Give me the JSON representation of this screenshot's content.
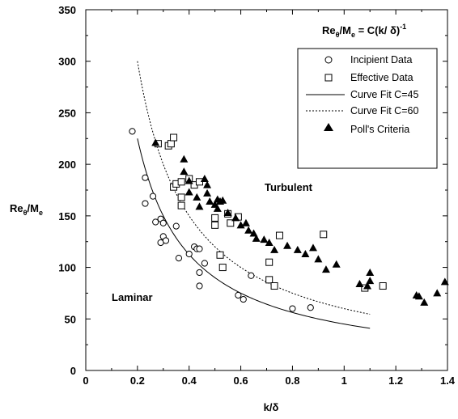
{
  "chart_data": {
    "type": "scatter",
    "xlabel": "k/δ",
    "ylabel": {
      "main": "Re",
      "sub1": "θ",
      "mid": "/M",
      "sub2": "e"
    },
    "xlim": [
      0,
      1.4
    ],
    "ylim": [
      0,
      350
    ],
    "x_ticks": [
      0,
      0.2,
      0.4,
      0.6,
      0.8,
      1,
      1.2,
      1.4
    ],
    "x_tick_labels": [
      "0",
      "0.2",
      "0.4",
      "0.6",
      "0.8",
      "1",
      "1.2",
      "1.4"
    ],
    "y_ticks": [
      0,
      50,
      100,
      150,
      200,
      250,
      300,
      350
    ],
    "y_tick_labels": [
      "0",
      "50",
      "100",
      "150",
      "200",
      "250",
      "300",
      "350"
    ],
    "grid": false,
    "formula": {
      "lhs_main": "Re",
      "lhs_sub1": "θ",
      "lhs_mid": "/M",
      "lhs_sub2": "e",
      "rhs": " = C(k/ δ)",
      "exponent": "-1"
    },
    "region_labels": [
      "Turbulent",
      "Laminar"
    ],
    "legend_position": "top-right",
    "series": [
      {
        "name": "Incipient Data",
        "marker": "circle-open",
        "points": [
          [
            0.18,
            232
          ],
          [
            0.23,
            187
          ],
          [
            0.23,
            162
          ],
          [
            0.26,
            169
          ],
          [
            0.27,
            144
          ],
          [
            0.29,
            147
          ],
          [
            0.29,
            124
          ],
          [
            0.3,
            130
          ],
          [
            0.3,
            143
          ],
          [
            0.31,
            126
          ],
          [
            0.35,
            140
          ],
          [
            0.36,
            109
          ],
          [
            0.4,
            113
          ],
          [
            0.42,
            120
          ],
          [
            0.43,
            118
          ],
          [
            0.44,
            118
          ],
          [
            0.44,
            82
          ],
          [
            0.44,
            95
          ],
          [
            0.46,
            104
          ],
          [
            0.59,
            73
          ],
          [
            0.61,
            69
          ],
          [
            0.64,
            92
          ],
          [
            0.8,
            60
          ],
          [
            0.87,
            61
          ]
        ]
      },
      {
        "name": "Effective Data",
        "marker": "square-open",
        "points": [
          [
            0.28,
            220
          ],
          [
            0.32,
            218
          ],
          [
            0.33,
            220
          ],
          [
            0.34,
            226
          ],
          [
            0.34,
            178
          ],
          [
            0.35,
            181
          ],
          [
            0.37,
            168
          ],
          [
            0.37,
            160
          ],
          [
            0.37,
            183
          ],
          [
            0.4,
            186
          ],
          [
            0.42,
            180
          ],
          [
            0.44,
            183
          ],
          [
            0.5,
            148
          ],
          [
            0.5,
            141
          ],
          [
            0.52,
            112
          ],
          [
            0.53,
            100
          ],
          [
            0.55,
            152
          ],
          [
            0.56,
            143
          ],
          [
            0.59,
            149
          ],
          [
            0.71,
            105
          ],
          [
            0.71,
            88
          ],
          [
            0.73,
            82
          ],
          [
            0.75,
            131
          ],
          [
            0.92,
            132
          ],
          [
            1.08,
            80
          ],
          [
            1.15,
            82
          ]
        ]
      },
      {
        "name": "Curve Fit C=45",
        "line": "solid",
        "C": 45,
        "x_range": [
          0.2,
          1.1
        ]
      },
      {
        "name": "Curve Fit C=60",
        "line": "dotted",
        "C": 60,
        "x_range": [
          0.2,
          1.1
        ]
      },
      {
        "name": "Poll's Criteria",
        "marker": "triangle-filled",
        "points": [
          [
            0.27,
            221
          ],
          [
            0.38,
            205
          ],
          [
            0.38,
            193
          ],
          [
            0.4,
            184
          ],
          [
            0.4,
            173
          ],
          [
            0.43,
            168
          ],
          [
            0.44,
            159
          ],
          [
            0.46,
            186
          ],
          [
            0.47,
            180
          ],
          [
            0.47,
            172
          ],
          [
            0.48,
            164
          ],
          [
            0.5,
            161
          ],
          [
            0.51,
            157
          ],
          [
            0.51,
            166
          ],
          [
            0.52,
            164
          ],
          [
            0.53,
            165
          ],
          [
            0.55,
            153
          ],
          [
            0.58,
            148
          ],
          [
            0.6,
            141
          ],
          [
            0.62,
            143
          ],
          [
            0.63,
            136
          ],
          [
            0.65,
            133
          ],
          [
            0.66,
            128
          ],
          [
            0.69,
            127
          ],
          [
            0.71,
            124
          ],
          [
            0.73,
            117
          ],
          [
            0.78,
            121
          ],
          [
            0.82,
            117
          ],
          [
            0.85,
            113
          ],
          [
            0.88,
            119
          ],
          [
            0.9,
            108
          ],
          [
            0.93,
            98
          ],
          [
            0.97,
            103
          ],
          [
            1.06,
            84
          ],
          [
            1.09,
            82
          ],
          [
            1.1,
            95
          ],
          [
            1.1,
            87
          ],
          [
            1.28,
            73
          ],
          [
            1.29,
            72
          ],
          [
            1.31,
            66
          ],
          [
            1.36,
            75
          ],
          [
            1.39,
            86
          ]
        ]
      }
    ]
  }
}
